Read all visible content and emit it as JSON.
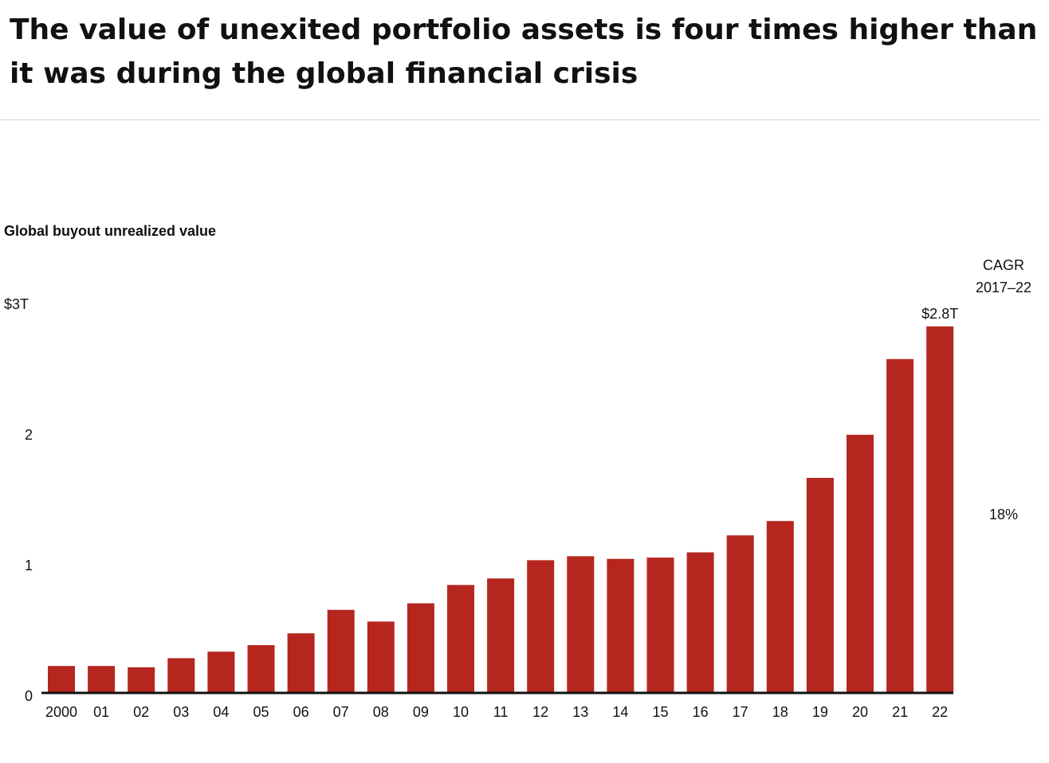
{
  "headline": "The value of unexited portfolio assets is four times higher than it was during the global financial crisis",
  "colors": {
    "bar": "#b5261e",
    "axis": "#111111",
    "rule": "#d5d5d5"
  },
  "chart_data": {
    "type": "bar",
    "title": "Global buyout unrealized value",
    "xlabel": "",
    "ylabel": "",
    "categories": [
      "2000",
      "01",
      "02",
      "03",
      "04",
      "05",
      "06",
      "07",
      "08",
      "09",
      "10",
      "11",
      "12",
      "13",
      "14",
      "15",
      "16",
      "17",
      "18",
      "19",
      "20",
      "21",
      "22"
    ],
    "values": [
      0.2,
      0.2,
      0.19,
      0.26,
      0.31,
      0.36,
      0.45,
      0.63,
      0.54,
      0.68,
      0.82,
      0.87,
      1.01,
      1.04,
      1.02,
      1.03,
      1.07,
      1.2,
      1.31,
      1.64,
      1.97,
      2.55,
      2.8
    ],
    "ylim": [
      0,
      3
    ],
    "yticks": [
      {
        "value": 0,
        "label": "0"
      },
      {
        "value": 1,
        "label": "1"
      },
      {
        "value": 2,
        "label": "2"
      },
      {
        "value": 3,
        "label": "$3T"
      }
    ],
    "grid": false,
    "annotations": {
      "last_bar_label": "$2.8T",
      "cagr_header_line1": "CAGR",
      "cagr_header_line2": "2017–22",
      "cagr_value": "18%"
    }
  }
}
